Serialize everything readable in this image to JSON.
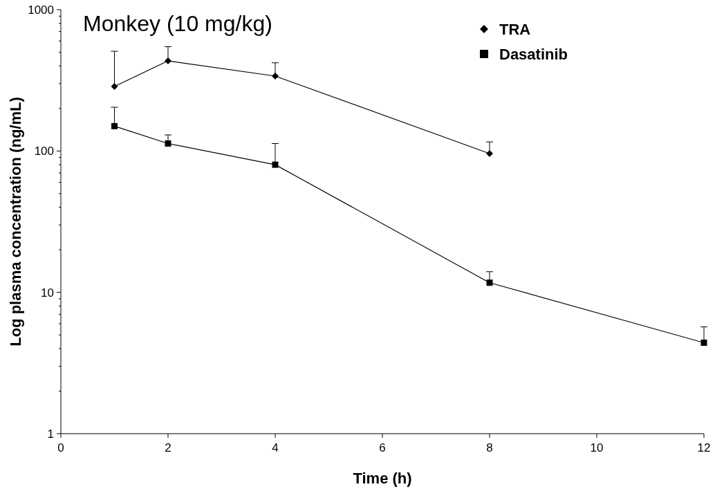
{
  "chart_data": {
    "type": "line",
    "title": "Monkey (10 mg/kg)",
    "xlabel": "Time (h)",
    "ylabel": "Log plasma concentration  (ng/mL)",
    "log": "y",
    "legend": "top right",
    "grid": false,
    "xlim": [
      0,
      12
    ],
    "xticks": [
      0,
      2,
      4,
      6,
      8,
      10,
      12
    ],
    "ylim": [
      1,
      1000
    ],
    "yticks": [
      1,
      {
        "value": 2,
        "label": null
      },
      {
        "value": 3,
        "label": null
      },
      {
        "value": 4,
        "label": null
      },
      {
        "value": 5,
        "label": null
      },
      {
        "value": 6,
        "label": null
      },
      {
        "value": 7,
        "label": null
      },
      {
        "value": 8,
        "label": null
      },
      {
        "value": 9,
        "label": null
      },
      10,
      {
        "value": 20,
        "label": null
      },
      {
        "value": 30,
        "label": null
      },
      {
        "value": 40,
        "label": null
      },
      {
        "value": 50,
        "label": null
      },
      {
        "value": 60,
        "label": null
      },
      {
        "value": 70,
        "label": null
      },
      {
        "value": 80,
        "label": null
      },
      {
        "value": 90,
        "label": null
      },
      100,
      {
        "value": 200,
        "label": null
      },
      {
        "value": 300,
        "label": null
      },
      {
        "value": 400,
        "label": null
      },
      {
        "value": 500,
        "label": null
      },
      {
        "value": 600,
        "label": null
      },
      {
        "value": 700,
        "label": null
      },
      {
        "value": 800,
        "label": null
      },
      {
        "value": 900,
        "label": null
      },
      1000
    ],
    "series": [
      {
        "name": "TRA",
        "color": "#000000",
        "marker": "diamond",
        "x": [
          1,
          2,
          4,
          8
        ],
        "values": [
          286,
          434,
          339,
          96
        ],
        "errors": [
          [
            286,
            508
          ],
          [
            434,
            547
          ],
          [
            339,
            421
          ],
          [
            96,
            116
          ]
        ]
      },
      {
        "name": "Dasatinib",
        "color": "#000000",
        "marker": "square",
        "x": [
          1,
          2,
          4,
          8,
          12
        ],
        "values": [
          150,
          113,
          80,
          11.7,
          4.4
        ],
        "errors": [
          [
            150,
            204
          ],
          [
            113,
            130
          ],
          [
            80,
            113
          ],
          [
            11.7,
            14
          ],
          [
            4.4,
            5.7
          ]
        ]
      }
    ]
  }
}
